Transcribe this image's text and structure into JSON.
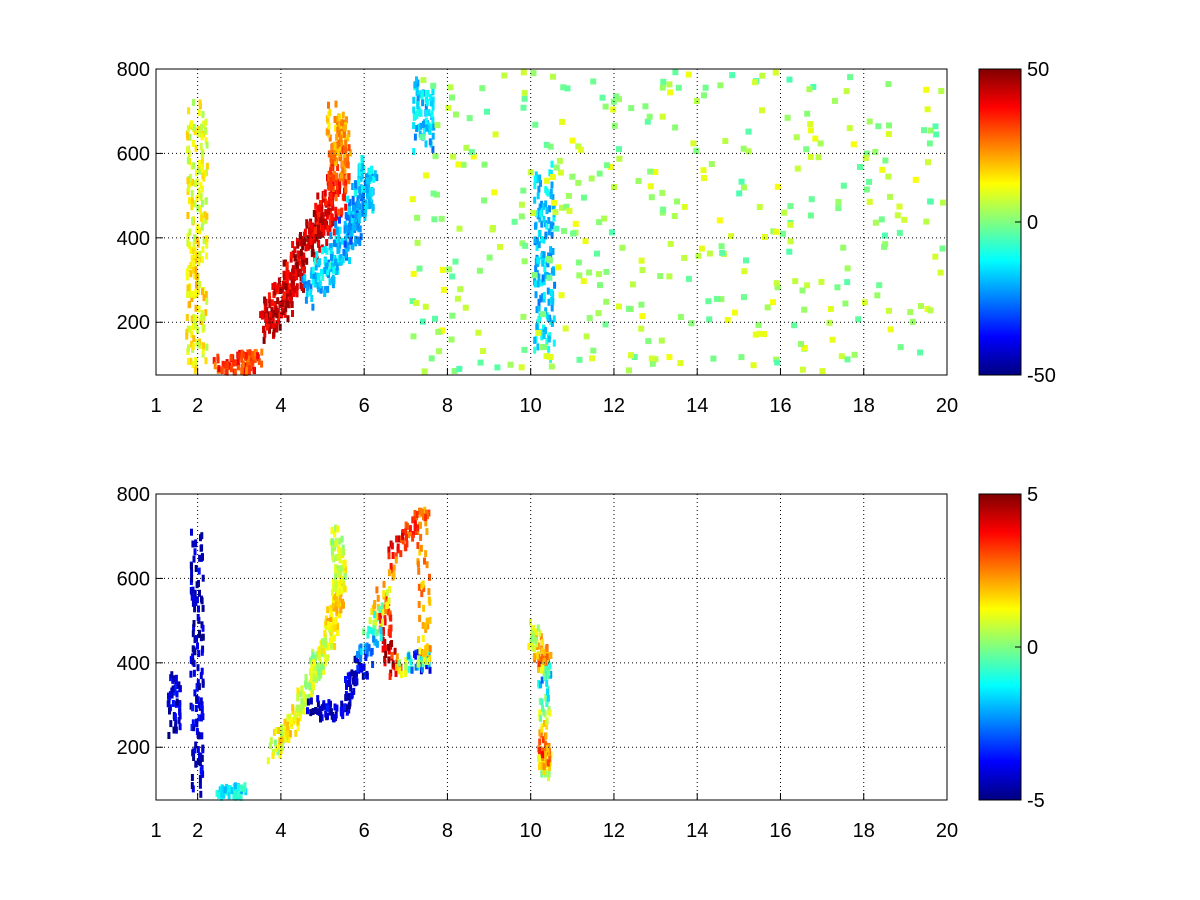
{
  "chart_data": [
    {
      "type": "heatmap",
      "title": "",
      "xlabel": "",
      "ylabel": "",
      "xlim": [
        1,
        20
      ],
      "ylim": [
        75,
        800
      ],
      "xticks": [
        1,
        2,
        4,
        6,
        8,
        10,
        12,
        14,
        16,
        18,
        20
      ],
      "xtick_labels": [
        "1",
        "2",
        "4",
        "6",
        "8",
        "10",
        "12",
        "14",
        "16",
        "18",
        "20"
      ],
      "yticks": [
        200,
        400,
        600,
        800
      ],
      "ytick_labels": [
        "200",
        "400",
        "600",
        "800"
      ],
      "grid": true,
      "colormap": "jet",
      "clim": [
        -50,
        50
      ],
      "colorbar_ticks": [
        50,
        0,
        -50
      ],
      "colorbar_tick_labels": [
        "50",
        "0",
        "-50"
      ],
      "features": [
        {
          "desc": "high-positive ridge",
          "points": [
            [
              3.7,
              200,
              45
            ],
            [
              4.0,
              260,
              40
            ],
            [
              4.3,
              330,
              42
            ],
            [
              4.7,
              410,
              45
            ],
            [
              5.0,
              460,
              40
            ],
            [
              5.3,
              520,
              35
            ],
            [
              5.4,
              600,
              25
            ],
            [
              5.3,
              700,
              20
            ]
          ]
        },
        {
          "desc": "negative band",
          "points": [
            [
              4.7,
              280,
              -20
            ],
            [
              5.2,
              360,
              -15
            ],
            [
              5.6,
              430,
              -25
            ],
            [
              5.9,
              500,
              -20
            ],
            [
              6.1,
              560,
              -15
            ]
          ]
        },
        {
          "desc": "vertical line",
          "points": [
            [
              1.95,
              100,
              10
            ],
            [
              1.95,
              300,
              15
            ],
            [
              1.95,
              500,
              10
            ],
            [
              1.95,
              700,
              10
            ]
          ]
        },
        {
          "desc": "low band",
          "points": [
            [
              2.5,
              90,
              30
            ],
            [
              3.0,
              95,
              35
            ],
            [
              3.3,
              100,
              30
            ]
          ]
        },
        {
          "desc": "vertical line",
          "points": [
            [
              10.3,
              150,
              -15
            ],
            [
              10.3,
              350,
              -20
            ],
            [
              10.3,
              550,
              -15
            ]
          ]
        },
        {
          "desc": "vertical line",
          "points": [
            [
              7.4,
              650,
              -20
            ],
            [
              7.4,
              750,
              -15
            ]
          ]
        }
      ],
      "sparse_noise": {
        "x_from": 7.0,
        "x_to": 20.0,
        "value_range": [
          -5,
          12
        ],
        "fraction": 0.18
      }
    },
    {
      "type": "heatmap",
      "title": "",
      "xlabel": "",
      "ylabel": "",
      "xlim": [
        1,
        20
      ],
      "ylim": [
        75,
        800
      ],
      "xticks": [
        1,
        2,
        4,
        6,
        8,
        10,
        12,
        14,
        16,
        18,
        20
      ],
      "xtick_labels": [
        "1",
        "2",
        "4",
        "6",
        "8",
        "10",
        "12",
        "14",
        "16",
        "18",
        "20"
      ],
      "yticks": [
        200,
        400,
        600,
        800
      ],
      "ytick_labels": [
        "200",
        "400",
        "600",
        "800"
      ],
      "grid": true,
      "colormap": "jet",
      "clim": [
        -5,
        5
      ],
      "colorbar_ticks": [
        5,
        0,
        -5
      ],
      "colorbar_tick_labels": [
        "5",
        "0",
        "-5"
      ],
      "features": [
        {
          "desc": "main cluster",
          "points": [
            [
              3.8,
              200,
              0.5
            ],
            [
              4.2,
              260,
              1.5
            ],
            [
              4.5,
              320,
              0.8
            ],
            [
              4.8,
              400,
              0.5
            ],
            [
              5.1,
              460,
              1.0
            ],
            [
              5.3,
              540,
              1.8
            ],
            [
              5.4,
              620,
              1.0
            ],
            [
              5.3,
              720,
              0.5
            ]
          ]
        },
        {
          "desc": "scattered points",
          "points": [
            [
              4.7,
              300,
              -4.5
            ],
            [
              5.5,
              300,
              -4.0
            ],
            [
              5.8,
              400,
              -4.5
            ],
            [
              6.4,
              560,
              3.0
            ],
            [
              6.6,
              400,
              4.5
            ],
            [
              7.4,
              410,
              -4.5
            ],
            [
              7.4,
              430,
              2.0
            ],
            [
              7.4,
              770,
              2.5
            ],
            [
              6.7,
              670,
              4.0
            ],
            [
              6.0,
              380,
              -4.0
            ]
          ]
        },
        {
          "desc": "vertical line",
          "points": [
            [
              1.95,
              120,
              -4.5
            ],
            [
              1.95,
              300,
              -4.0
            ],
            [
              1.95,
              500,
              -4.5
            ],
            [
              1.95,
              700,
              -4.0
            ]
          ]
        },
        {
          "desc": "low band",
          "points": [
            [
              2.3,
              85,
              -1.0
            ],
            [
              2.8,
              90,
              -1.5
            ],
            [
              3.0,
              95,
              -1.2
            ]
          ]
        },
        {
          "desc": "vertical line",
          "points": [
            [
              10.3,
              160,
              0.5
            ],
            [
              10.3,
              200,
              3.0
            ],
            [
              10.3,
              390,
              -2.5
            ],
            [
              10.3,
              420,
              3.0
            ],
            [
              10.0,
              480,
              0.5
            ]
          ]
        },
        {
          "desc": "left column",
          "points": [
            [
              1.4,
              260,
              -4.5
            ],
            [
              1.4,
              370,
              -4.0
            ]
          ]
        }
      ],
      "sparse_noise": {
        "x_from": 1.0,
        "x_to": 7.0,
        "value_range": [
          -1,
          2
        ],
        "fraction": 0.0
      }
    }
  ]
}
